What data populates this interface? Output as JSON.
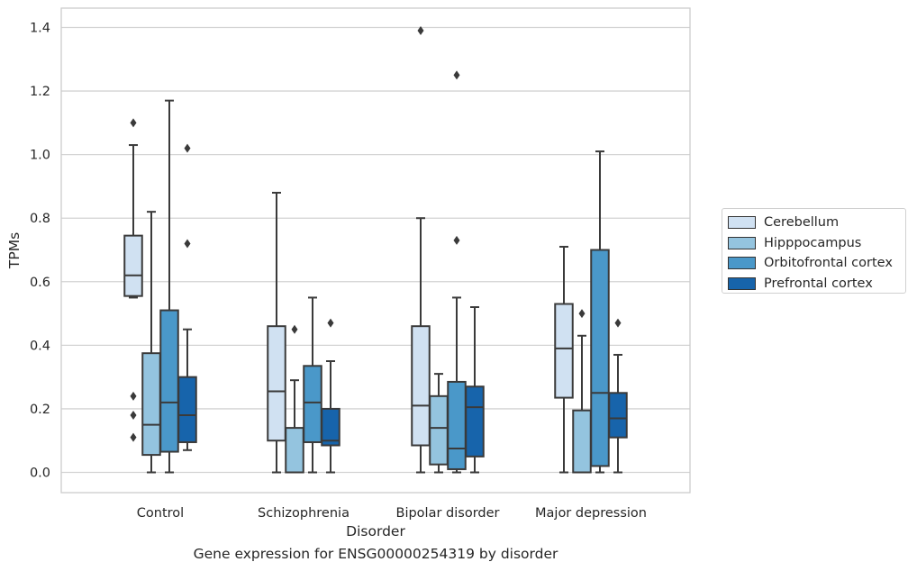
{
  "colors": {
    "Cerebellum": "#d0e1f2",
    "Hipppocampus": "#94c4df",
    "Orbitofrontal cortex": "#4a98c9",
    "Prefrontal cortex": "#1764ab",
    "grid": "#d3d3d3",
    "outline": "#3a3a3a"
  },
  "caption": "Gene expression for ENSG00000254319 by disorder",
  "chart_data": {
    "type": "box",
    "title": "",
    "xlabel": "Disorder",
    "ylabel": "TPMs",
    "ylim": [
      -0.07,
      1.46
    ],
    "yticks": [
      0.0,
      0.2,
      0.4,
      0.6,
      0.8,
      1.0,
      1.2,
      1.4
    ],
    "ytick_labels": [
      "0.0",
      "0.2",
      "0.4",
      "0.6",
      "0.8",
      "1.0",
      "1.2",
      "1.4"
    ],
    "grid": "horizontal",
    "legend_position": "right",
    "categories": [
      "Control",
      "Schizophrenia",
      "Bipolar disorder",
      "Major depression"
    ],
    "series": [
      {
        "name": "Cerebellum",
        "boxes": [
          {
            "whisker_low": 0.55,
            "q1": 0.555,
            "median": 0.62,
            "q3": 0.745,
            "whisker_high": 1.03,
            "outliers": [
              1.1,
              0.24,
              0.18,
              0.11
            ]
          },
          {
            "whisker_low": 0.0,
            "q1": 0.1,
            "median": 0.255,
            "q3": 0.46,
            "whisker_high": 0.88,
            "outliers": []
          },
          {
            "whisker_low": 0.0,
            "q1": 0.085,
            "median": 0.21,
            "q3": 0.46,
            "whisker_high": 0.8,
            "outliers": [
              1.39
            ]
          },
          {
            "whisker_low": 0.0,
            "q1": 0.235,
            "median": 0.39,
            "q3": 0.53,
            "whisker_high": 0.71,
            "outliers": []
          }
        ]
      },
      {
        "name": "Hipppocampus",
        "boxes": [
          {
            "whisker_low": 0.0,
            "q1": 0.055,
            "median": 0.15,
            "q3": 0.375,
            "whisker_high": 0.82,
            "outliers": []
          },
          {
            "whisker_low": 0.0,
            "q1": 0.0,
            "median": 0.0,
            "q3": 0.14,
            "whisker_high": 0.29,
            "outliers": [
              0.45
            ]
          },
          {
            "whisker_low": 0.0,
            "q1": 0.025,
            "median": 0.14,
            "q3": 0.24,
            "whisker_high": 0.31,
            "outliers": []
          },
          {
            "whisker_low": 0.0,
            "q1": 0.0,
            "median": 0.0,
            "q3": 0.195,
            "whisker_high": 0.43,
            "outliers": [
              0.5
            ]
          }
        ]
      },
      {
        "name": "Orbitofrontal cortex",
        "boxes": [
          {
            "whisker_low": 0.0,
            "q1": 0.065,
            "median": 0.22,
            "q3": 0.51,
            "whisker_high": 1.17,
            "outliers": []
          },
          {
            "whisker_low": 0.0,
            "q1": 0.095,
            "median": 0.22,
            "q3": 0.335,
            "whisker_high": 0.55,
            "outliers": []
          },
          {
            "whisker_low": 0.0,
            "q1": 0.01,
            "median": 0.075,
            "q3": 0.285,
            "whisker_high": 0.55,
            "outliers": [
              1.25,
              0.73
            ]
          },
          {
            "whisker_low": 0.0,
            "q1": 0.02,
            "median": 0.25,
            "q3": 0.7,
            "whisker_high": 1.01,
            "outliers": []
          }
        ]
      },
      {
        "name": "Prefrontal cortex",
        "boxes": [
          {
            "whisker_low": 0.07,
            "q1": 0.095,
            "median": 0.18,
            "q3": 0.3,
            "whisker_high": 0.45,
            "outliers": [
              1.02,
              0.72
            ]
          },
          {
            "whisker_low": 0.0,
            "q1": 0.085,
            "median": 0.1,
            "q3": 0.2,
            "whisker_high": 0.35,
            "outliers": [
              0.47
            ]
          },
          {
            "whisker_low": 0.0,
            "q1": 0.05,
            "median": 0.205,
            "q3": 0.27,
            "whisker_high": 0.52,
            "outliers": []
          },
          {
            "whisker_low": 0.0,
            "q1": 0.11,
            "median": 0.17,
            "q3": 0.25,
            "whisker_high": 0.37,
            "outliers": [
              0.47
            ]
          }
        ]
      }
    ]
  }
}
